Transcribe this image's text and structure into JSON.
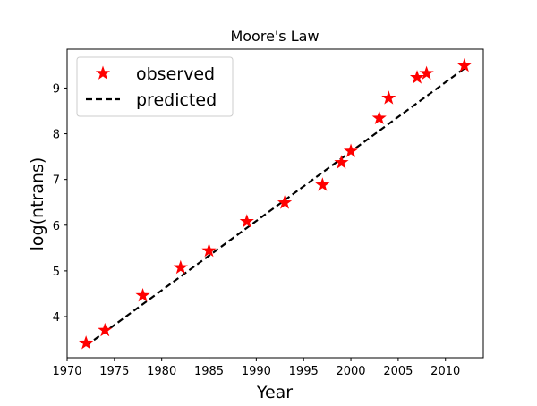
{
  "chart_data": {
    "type": "scatter",
    "title": "Moore's Law",
    "xlabel": "Year",
    "ylabel": "log(ntrans)",
    "xlim": [
      1970,
      2014
    ],
    "ylim": [
      3.1,
      9.85
    ],
    "xticks": [
      1970,
      1975,
      1980,
      1985,
      1990,
      1995,
      2000,
      2005,
      2010
    ],
    "yticks": [
      4,
      5,
      6,
      7,
      8,
      9
    ],
    "grid": false,
    "legend_position": "top-left",
    "series": [
      {
        "name": "observed",
        "kind": "scatter",
        "marker": "star",
        "color": "#ff0000",
        "x": [
          1972,
          1974,
          1978,
          1982,
          1985,
          1989,
          1993,
          1997,
          1999,
          2000,
          2003,
          2004,
          2007,
          2008,
          2012
        ],
        "y": [
          3.42,
          3.7,
          4.46,
          5.07,
          5.44,
          6.08,
          6.49,
          6.88,
          7.37,
          7.62,
          8.34,
          8.78,
          9.23,
          9.32,
          9.49
        ]
      },
      {
        "name": "predicted",
        "kind": "line",
        "style": "dashed",
        "color": "#000000",
        "x": [
          1972,
          2012
        ],
        "y": [
          3.36,
          9.43
        ]
      }
    ]
  }
}
